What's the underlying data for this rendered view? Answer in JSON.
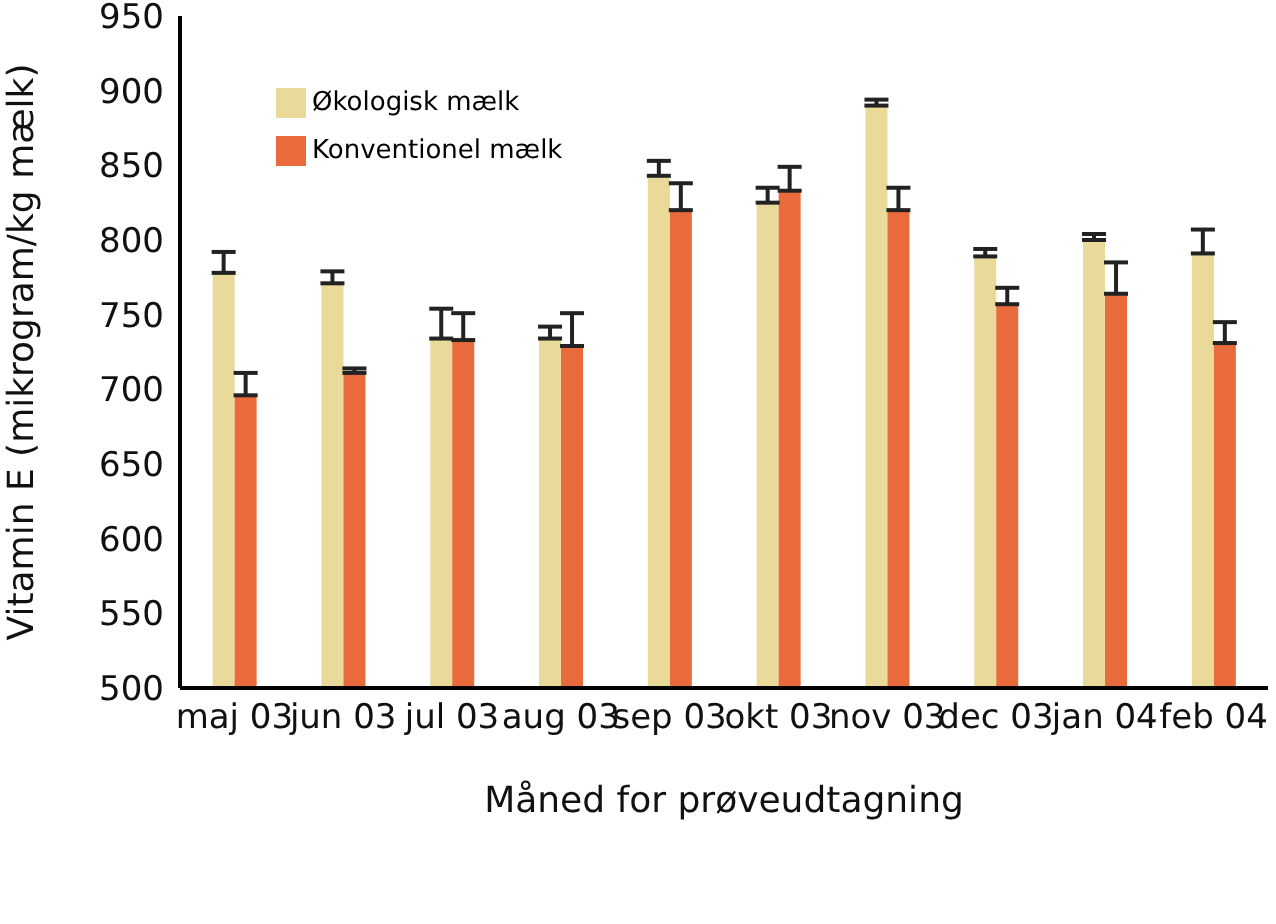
{
  "chart_data": {
    "type": "bar",
    "xlabel": "Måned for prøveudtagning",
    "ylabel": "Vitamin E (mikrogram/kg mælk)",
    "categories": [
      "maj 03",
      "jun 03",
      "jul 03",
      "aug 03",
      "sep 03",
      "okt 03",
      "nov 03",
      "dec 03",
      "jan 04",
      "feb 04"
    ],
    "series": [
      {
        "name": "Økologisk mælk",
        "color": "#e9da9a",
        "values": [
          778,
          771,
          734,
          734,
          843,
          825,
          890,
          789,
          800,
          791
        ],
        "errors": [
          [
            778,
            792
          ],
          [
            771,
            779
          ],
          [
            734,
            754
          ],
          [
            734,
            742
          ],
          [
            843,
            853
          ],
          [
            825,
            835
          ],
          [
            890,
            894
          ],
          [
            789,
            794
          ],
          [
            800,
            804
          ],
          [
            791,
            807
          ]
        ]
      },
      {
        "name": "Konventionel mælk",
        "color": "#e96a3a",
        "values": [
          696,
          711,
          733,
          729,
          820,
          833,
          820,
          757,
          764,
          731
        ],
        "errors": [
          [
            696,
            711
          ],
          [
            711,
            714
          ],
          [
            733,
            751
          ],
          [
            729,
            751
          ],
          [
            820,
            838
          ],
          [
            833,
            849
          ],
          [
            820,
            835
          ],
          [
            757,
            768
          ],
          [
            764,
            785
          ],
          [
            731,
            745
          ]
        ]
      }
    ],
    "ylim": [
      500,
      950
    ],
    "yticks": [
      500,
      550,
      600,
      650,
      700,
      750,
      800,
      850,
      900,
      950
    ],
    "grid": false,
    "legend": "top left"
  }
}
